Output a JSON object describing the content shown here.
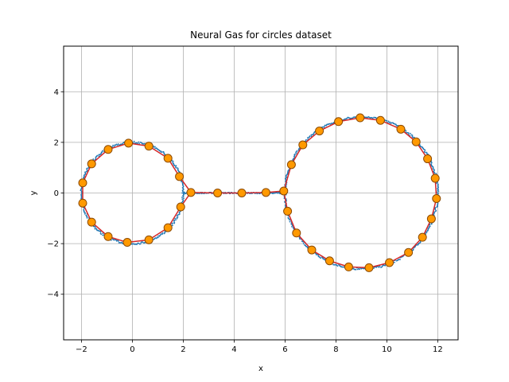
{
  "chart_data": {
    "type": "scatter",
    "title": "Neural Gas for circles dataset",
    "xlabel": "x",
    "ylabel": "y",
    "xlim": [
      -2.7,
      12.8
    ],
    "ylim": [
      -5.8,
      5.8
    ],
    "x_ticks": [
      -2,
      0,
      2,
      4,
      6,
      8,
      10,
      12
    ],
    "y_ticks": [
      -4,
      -2,
      0,
      2,
      4
    ],
    "grid": true,
    "colors": {
      "data": "#1f77b4",
      "edges": "#d62728",
      "node_fill": "#ff9900",
      "node_edge": "#8c4a00"
    },
    "series": [
      {
        "role": "data points",
        "kind": "ring samples",
        "circles": [
          {
            "cx": 0,
            "cy": 0,
            "r": 2
          },
          {
            "cx": 9,
            "cy": 0,
            "r": 3
          }
        ],
        "connector": {
          "x": [
            2,
            6
          ],
          "y": 0
        }
      },
      {
        "role": "network nodes",
        "points": [
          [
            -1.95,
            0.4
          ],
          [
            -1.95,
            -0.4
          ],
          [
            -1.6,
            1.15
          ],
          [
            -1.6,
            -1.15
          ],
          [
            -0.95,
            1.72
          ],
          [
            -0.95,
            -1.72
          ],
          [
            -0.15,
            1.97
          ],
          [
            -0.2,
            -1.95
          ],
          [
            0.65,
            1.85
          ],
          [
            0.65,
            -1.85
          ],
          [
            1.4,
            1.37
          ],
          [
            1.4,
            -1.37
          ],
          [
            1.85,
            0.65
          ],
          [
            1.9,
            -0.55
          ],
          [
            2.3,
            0.02
          ],
          [
            3.35,
            0.0
          ],
          [
            4.3,
            0.0
          ],
          [
            5.25,
            0.02
          ],
          [
            5.95,
            0.08
          ],
          [
            6.1,
            -0.72
          ],
          [
            6.25,
            1.12
          ],
          [
            6.45,
            -1.58
          ],
          [
            6.7,
            1.9
          ],
          [
            7.05,
            -2.25
          ],
          [
            7.35,
            2.45
          ],
          [
            7.75,
            -2.68
          ],
          [
            8.1,
            2.82
          ],
          [
            8.5,
            -2.92
          ],
          [
            8.95,
            2.97
          ],
          [
            9.3,
            -2.95
          ],
          [
            9.75,
            2.87
          ],
          [
            10.1,
            -2.75
          ],
          [
            10.55,
            2.52
          ],
          [
            10.85,
            -2.35
          ],
          [
            11.15,
            2.02
          ],
          [
            11.4,
            -1.75
          ],
          [
            11.6,
            1.35
          ],
          [
            11.75,
            -1.02
          ],
          [
            11.9,
            0.58
          ],
          [
            11.95,
            -0.22
          ]
        ]
      }
    ],
    "edges": [
      [
        0,
        1
      ],
      [
        0,
        2
      ],
      [
        2,
        4
      ],
      [
        4,
        6
      ],
      [
        6,
        8
      ],
      [
        8,
        10
      ],
      [
        10,
        12
      ],
      [
        12,
        14
      ],
      [
        1,
        3
      ],
      [
        3,
        5
      ],
      [
        5,
        7
      ],
      [
        7,
        9
      ],
      [
        9,
        11
      ],
      [
        11,
        13
      ],
      [
        13,
        14
      ],
      [
        14,
        15
      ],
      [
        15,
        16
      ],
      [
        16,
        17
      ],
      [
        17,
        18
      ],
      [
        18,
        20
      ],
      [
        20,
        22
      ],
      [
        22,
        24
      ],
      [
        24,
        26
      ],
      [
        26,
        28
      ],
      [
        28,
        30
      ],
      [
        30,
        32
      ],
      [
        32,
        34
      ],
      [
        34,
        36
      ],
      [
        36,
        38
      ],
      [
        38,
        39
      ],
      [
        39,
        37
      ],
      [
        37,
        35
      ],
      [
        35,
        33
      ],
      [
        33,
        31
      ],
      [
        31,
        29
      ],
      [
        29,
        27
      ],
      [
        27,
        25
      ],
      [
        25,
        23
      ],
      [
        23,
        21
      ],
      [
        21,
        19
      ],
      [
        19,
        18
      ]
    ]
  }
}
